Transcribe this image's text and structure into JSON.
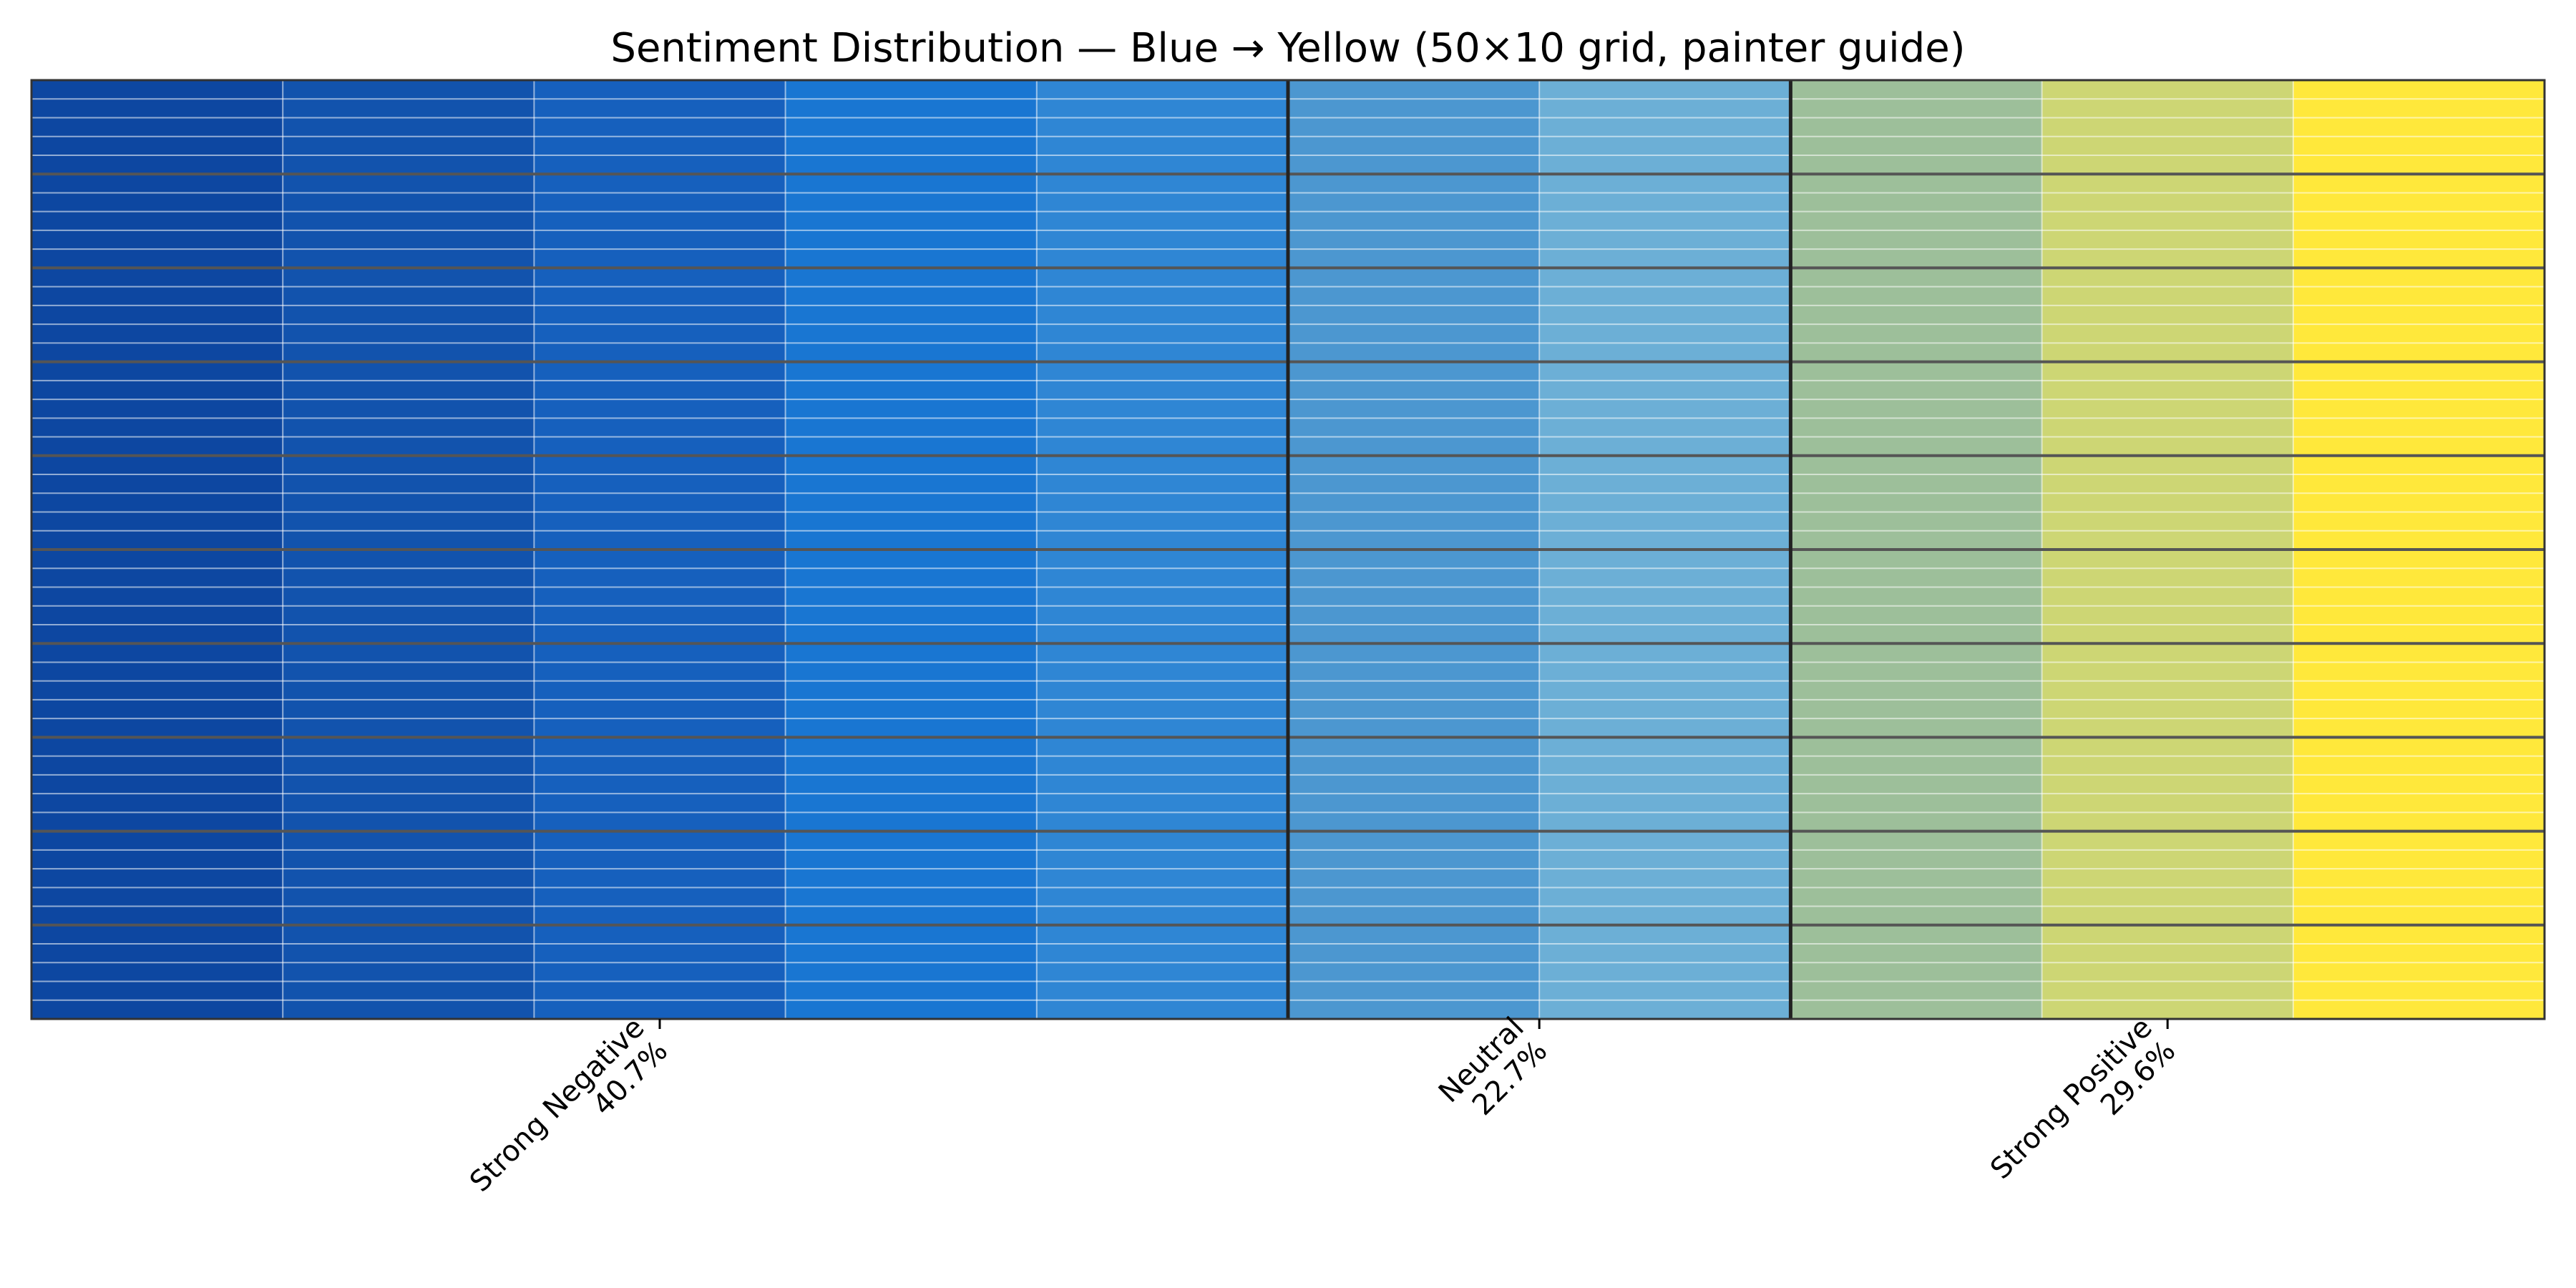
{
  "chart_data": {
    "type": "heatmap",
    "title": "Sentiment Distribution — Blue → Yellow (50×10 grid, painter guide)",
    "xlabel": "",
    "ylabel": "",
    "grid": {
      "rows": 50,
      "columns": 10
    },
    "column_colors": [
      "#0d47a1",
      "#1253ad",
      "#1660bd",
      "#1976d2",
      "#2f86d4",
      "#4c97d0",
      "#6cafd6",
      "#9dbf9a",
      "#cdd674",
      "#ffe83b"
    ],
    "group_boundaries_after_columns": [
      5,
      7
    ],
    "major_row_line_every": 5,
    "categories": [
      {
        "label": "Strong Negative\n40.7%",
        "name": "Strong Negative",
        "share": 40.7,
        "tick_at_column": 2.5
      },
      {
        "label": "Neutral\n22.7%",
        "name": "Neutral",
        "share": 22.7,
        "tick_at_column": 6.0
      },
      {
        "label": "Strong Positive\n29.6%",
        "name": "Strong Positive",
        "share": 29.6,
        "tick_at_column": 8.5
      }
    ],
    "colors": {
      "minor_grid": "#ffffff",
      "major_row_line": "#555555",
      "group_boundary": "#222222",
      "frame": "#333333"
    }
  }
}
